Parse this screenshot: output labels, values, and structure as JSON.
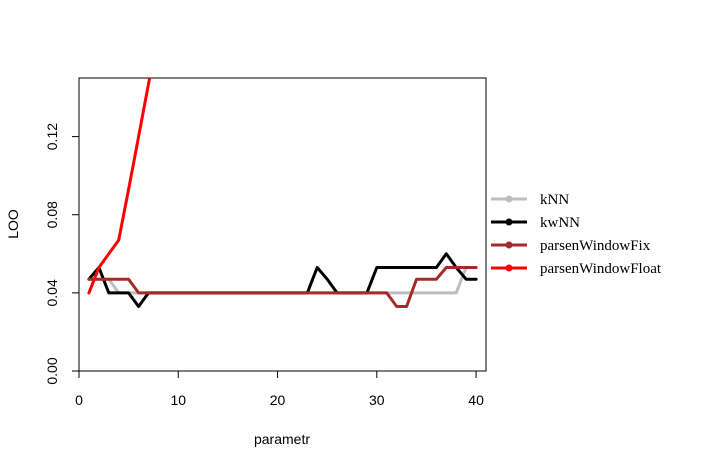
{
  "chart_data": {
    "type": "line",
    "title": "",
    "xlabel": "parametr",
    "ylabel": "LOO",
    "xlim": [
      0,
      41
    ],
    "ylim": [
      0,
      0.15
    ],
    "x_ticks": [
      0,
      10,
      20,
      30,
      40
    ],
    "y_ticks": [
      0.0,
      0.04,
      0.08,
      0.12
    ],
    "x_tick_labels": [
      "0",
      "10",
      "20",
      "30",
      "40"
    ],
    "y_tick_labels": [
      "0.00",
      "0.04",
      "0.08",
      "0.12"
    ],
    "grid": false,
    "legend_position": "right",
    "series": [
      {
        "name": "kNN",
        "color": "#BEBEBE",
        "x": [
          1,
          2,
          3,
          4,
          5,
          6,
          7,
          8,
          9,
          10,
          11,
          12,
          13,
          14,
          15,
          16,
          17,
          18,
          19,
          20,
          21,
          22,
          23,
          24,
          25,
          26,
          27,
          28,
          29,
          30,
          31,
          32,
          33,
          34,
          35,
          36,
          37,
          38,
          39,
          40
        ],
        "y": [
          0.047,
          0.047,
          0.047,
          0.04,
          0.04,
          0.04,
          0.04,
          0.04,
          0.04,
          0.04,
          0.04,
          0.04,
          0.04,
          0.04,
          0.04,
          0.04,
          0.04,
          0.04,
          0.04,
          0.04,
          0.04,
          0.04,
          0.04,
          0.04,
          0.04,
          0.04,
          0.04,
          0.04,
          0.04,
          0.04,
          0.04,
          0.04,
          0.04,
          0.04,
          0.04,
          0.04,
          0.04,
          0.04,
          0.053,
          0.053
        ]
      },
      {
        "name": "kwNN",
        "color": "#000000",
        "x": [
          1,
          2,
          3,
          4,
          5,
          6,
          7,
          8,
          9,
          10,
          11,
          12,
          13,
          14,
          15,
          16,
          17,
          18,
          19,
          20,
          21,
          22,
          23,
          24,
          25,
          26,
          27,
          28,
          29,
          30,
          31,
          32,
          33,
          34,
          35,
          36,
          37,
          38,
          39,
          40
        ],
        "y": [
          0.047,
          0.053,
          0.04,
          0.04,
          0.04,
          0.033,
          0.04,
          0.04,
          0.04,
          0.04,
          0.04,
          0.04,
          0.04,
          0.04,
          0.04,
          0.04,
          0.04,
          0.04,
          0.04,
          0.04,
          0.04,
          0.04,
          0.04,
          0.053,
          0.047,
          0.04,
          0.04,
          0.04,
          0.04,
          0.053,
          0.053,
          0.053,
          0.053,
          0.053,
          0.053,
          0.053,
          0.06,
          0.053,
          0.047,
          0.047
        ]
      },
      {
        "name": "parsenWindowFix",
        "color": "#A52A2A",
        "x": [
          1,
          2,
          3,
          4,
          5,
          6,
          7,
          8,
          9,
          10,
          11,
          12,
          13,
          14,
          15,
          16,
          17,
          18,
          19,
          20,
          21,
          22,
          23,
          24,
          25,
          26,
          27,
          28,
          29,
          30,
          31,
          32,
          33,
          34,
          35,
          36,
          37,
          38,
          39,
          40
        ],
        "y": [
          0.047,
          0.047,
          0.047,
          0.047,
          0.047,
          0.04,
          0.04,
          0.04,
          0.04,
          0.04,
          0.04,
          0.04,
          0.04,
          0.04,
          0.04,
          0.04,
          0.04,
          0.04,
          0.04,
          0.04,
          0.04,
          0.04,
          0.04,
          0.04,
          0.04,
          0.04,
          0.04,
          0.04,
          0.04,
          0.04,
          0.04,
          0.033,
          0.033,
          0.047,
          0.047,
          0.047,
          0.053,
          0.053,
          0.053,
          0.053
        ]
      },
      {
        "name": "parsenWindowFloat",
        "color": "#FF0000",
        "x": [
          1,
          2,
          3,
          4,
          5,
          6,
          7,
          8
        ],
        "y": [
          0.04,
          0.053,
          0.06,
          0.067,
          0.093,
          0.12,
          0.147,
          0.173
        ]
      }
    ]
  }
}
